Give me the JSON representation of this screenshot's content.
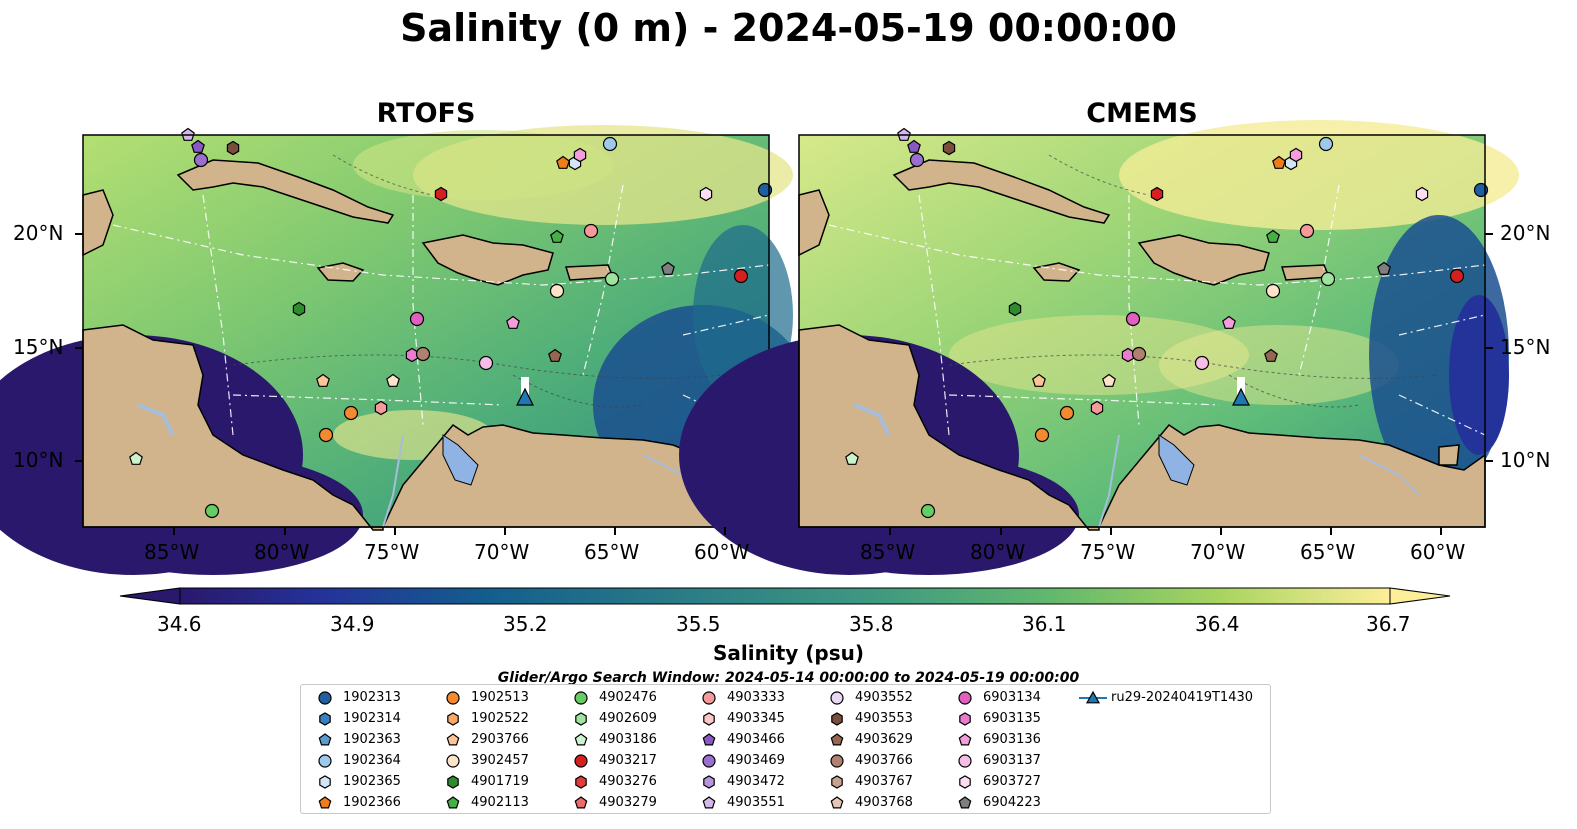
{
  "title": "Salinity (0 m) - 2024-05-19 00:00:00",
  "panels": [
    {
      "title": "RTOFS"
    },
    {
      "title": "CMEMS"
    }
  ],
  "map": {
    "lon_ticks": [
      "85°W",
      "80°W",
      "75°W",
      "70°W",
      "65°W",
      "60°W"
    ],
    "lat_ticks": [
      "20°N",
      "15°N",
      "10°N"
    ],
    "colors": {
      "land": "#d2b48c",
      "river": "#a6bddb",
      "lake": "#8fb4e3",
      "contour_depth": "1000",
      "glider_marker": "#1f77b4"
    }
  },
  "colorbar": {
    "label": "Salinity (psu)",
    "ticks": [
      "34.6",
      "34.9",
      "35.2",
      "35.5",
      "35.8",
      "36.1",
      "36.4",
      "36.7"
    ],
    "colormap": "haline",
    "range": [
      34.6,
      36.7
    ]
  },
  "search_window": "Glider/Argo Search Window: 2024-05-14 00:00:00 to 2024-05-19 00:00:00",
  "legend": {
    "entries": [
      {
        "label": "1902313",
        "marker": "circle",
        "color": "#1f5f9f"
      },
      {
        "label": "1902314",
        "marker": "hexagon",
        "color": "#3a7fbf"
      },
      {
        "label": "1902363",
        "marker": "pentagon",
        "color": "#5a9bd0"
      },
      {
        "label": "1902364",
        "marker": "circle",
        "color": "#9ec9ea"
      },
      {
        "label": "1902365",
        "marker": "hexagon",
        "color": "#d2e6f5"
      },
      {
        "label": "1902366",
        "marker": "pentagon",
        "color": "#f07d1a"
      },
      {
        "label": "1902513",
        "marker": "circle",
        "color": "#f48a30"
      },
      {
        "label": "1902522",
        "marker": "hexagon",
        "color": "#f9a868"
      },
      {
        "label": "2903766",
        "marker": "pentagon",
        "color": "#fbc595"
      },
      {
        "label": "3902457",
        "marker": "circle",
        "color": "#fde3c8"
      },
      {
        "label": "4901719",
        "marker": "hexagon",
        "color": "#2e8b2e"
      },
      {
        "label": "4902113",
        "marker": "pentagon",
        "color": "#45b045"
      },
      {
        "label": "4902476",
        "marker": "circle",
        "color": "#66cc66"
      },
      {
        "label": "4902609",
        "marker": "hexagon",
        "color": "#9ee39e"
      },
      {
        "label": "4903186",
        "marker": "pentagon",
        "color": "#cdf3cd"
      },
      {
        "label": "4903217",
        "marker": "circle",
        "color": "#d42020"
      },
      {
        "label": "4903276",
        "marker": "hexagon",
        "color": "#e03c3c"
      },
      {
        "label": "4903279",
        "marker": "pentagon",
        "color": "#ee6a6a"
      },
      {
        "label": "4903333",
        "marker": "circle",
        "color": "#f49a9a"
      },
      {
        "label": "4903345",
        "marker": "hexagon",
        "color": "#fac6c6"
      },
      {
        "label": "4903466",
        "marker": "pentagon",
        "color": "#8a58c4"
      },
      {
        "label": "4903469",
        "marker": "circle",
        "color": "#9b6fd0"
      },
      {
        "label": "4903472",
        "marker": "hexagon",
        "color": "#b794dd"
      },
      {
        "label": "4903551",
        "marker": "pentagon",
        "color": "#d2b8ec"
      },
      {
        "label": "4903552",
        "marker": "circle",
        "color": "#e8d8f6"
      },
      {
        "label": "4903553",
        "marker": "hexagon",
        "color": "#7a4e3c"
      },
      {
        "label": "4903629",
        "marker": "pentagon",
        "color": "#956652"
      },
      {
        "label": "4903766",
        "marker": "circle",
        "color": "#b08070"
      },
      {
        "label": "4903767",
        "marker": "hexagon",
        "color": "#caa090"
      },
      {
        "label": "4903768",
        "marker": "pentagon",
        "color": "#e6c6b6"
      },
      {
        "label": "6903134",
        "marker": "circle",
        "color": "#e060c0"
      },
      {
        "label": "6903135",
        "marker": "hexagon",
        "color": "#ea7ccf"
      },
      {
        "label": "6903136",
        "marker": "pentagon",
        "color": "#f39ddd"
      },
      {
        "label": "6903137",
        "marker": "circle",
        "color": "#f7bde8"
      },
      {
        "label": "6903727",
        "marker": "hexagon",
        "color": "#fbdcf3"
      },
      {
        "label": "6904223",
        "marker": "pentagon",
        "color": "#7f7f7f"
      },
      {
        "label": "ru29-20240419T1430",
        "marker": "triangle-line",
        "color": "#1f77b4"
      }
    ]
  }
}
